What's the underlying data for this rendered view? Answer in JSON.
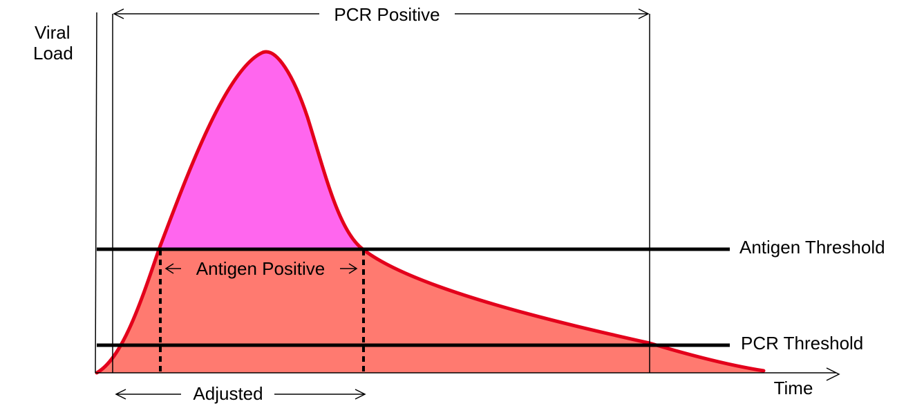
{
  "diagram": {
    "y_axis_label_line1": "Viral",
    "y_axis_label_line2": "Load",
    "x_axis_label": "Time",
    "pcr_positive_label": "PCR Positive",
    "antigen_positive_label": "Antigen Positive",
    "adjusted_label": "Adjusted",
    "antigen_threshold_label": "Antigen Threshold",
    "pcr_threshold_label": "PCR Threshold",
    "colors": {
      "curve_stroke": "#e3001b",
      "above_antigen_fill": "#ff66ee",
      "below_antigen_fill": "#ff7a70",
      "threshold_line": "#000000",
      "axis": "#000000"
    }
  }
}
